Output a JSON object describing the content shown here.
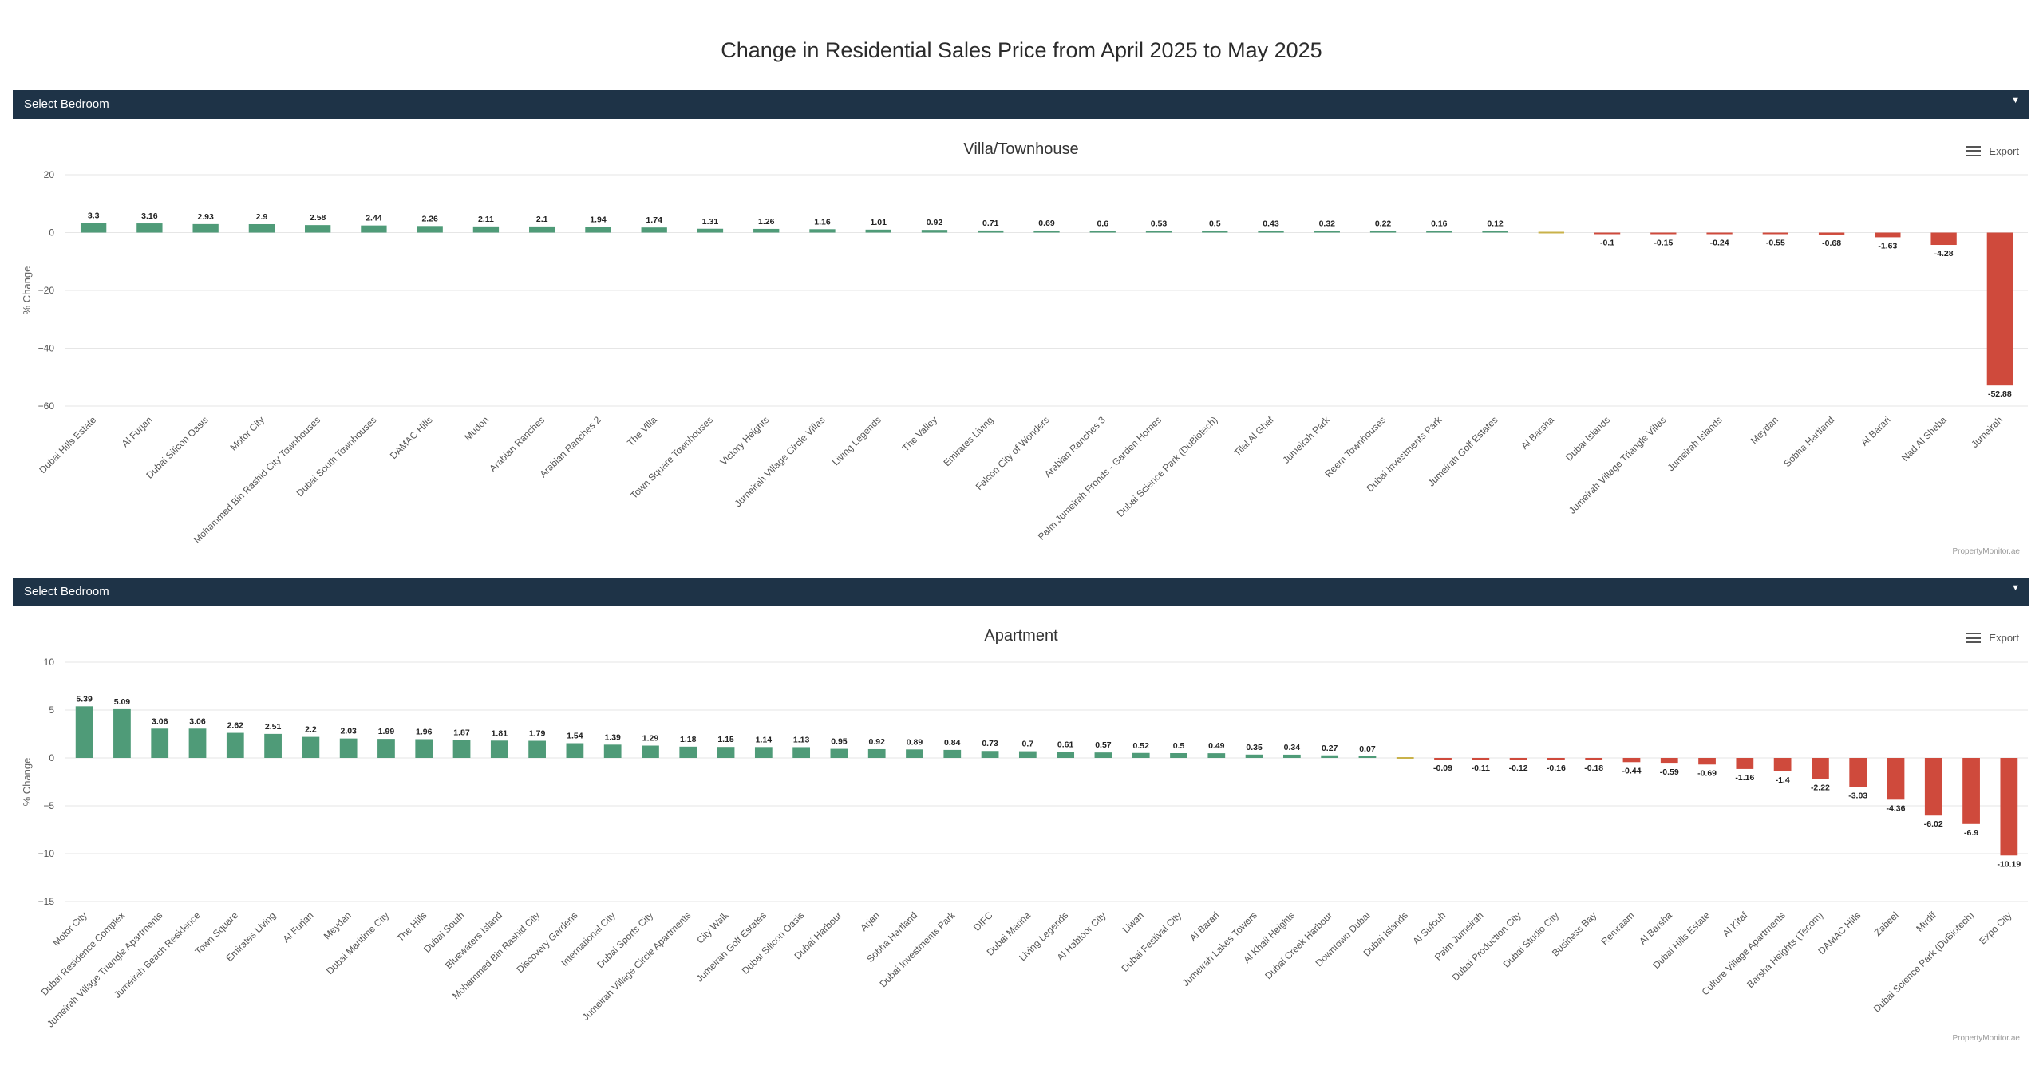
{
  "page": {
    "title": "Change in Residential Sales Price from April 2025 to May 2025"
  },
  "filters": [
    {
      "label": "Select Bedroom"
    },
    {
      "label": "Select Bedroom"
    }
  ],
  "export_label": "Export",
  "credit": "PropertyMonitor.ae",
  "colors": {
    "positive": "#4f9b78",
    "negative": "#cf4a3c",
    "zero": "#c9b24a",
    "filter_bar": "#1e3347",
    "grid": "#e6e6e6"
  },
  "chart_data": [
    {
      "type": "bar",
      "title": "Villa/Townhouse",
      "ylabel": "% Change",
      "ylim": [
        -60,
        20
      ],
      "yticks": [
        20,
        0,
        -20,
        -40,
        -60
      ],
      "ytick_labels": [
        "20",
        "0",
        "−20",
        "−40",
        "−60"
      ],
      "grid": true,
      "categories": [
        "Dubai Hills Estate",
        "Al Furjan",
        "Dubai Silicon Oasis",
        "Motor City",
        "Mohammed Bin Rashid City Townhouses",
        "Dubai South Townhouses",
        "DAMAC Hills",
        "Mudon",
        "Arabian Ranches",
        "Arabian Ranches 2",
        "The Villa",
        "Town Square Townhouses",
        "Victory Heights",
        "Jumeirah Village Circle Villas",
        "Living Legends",
        "The Valley",
        "Emirates Living",
        "Falcon City of Wonders",
        "Arabian Ranches 3",
        "Palm Jumeirah Fronds - Garden Homes",
        "Dubai Science Park (DuBiotech)",
        "Tilal Al Ghaf",
        "Jumeirah Park",
        "Reem Townhouses",
        "Dubai Investments Park",
        "Jumeirah Golf Estates",
        "Al Barsha",
        "Dubai Islands",
        "Jumeirah Village Triangle Villas",
        "Jumeirah Islands",
        "Meydan",
        "Sobha Hartland",
        "Al Barari",
        "Nad Al Sheba",
        "Jumeirah"
      ],
      "values": [
        3.3,
        3.16,
        2.93,
        2.9,
        2.58,
        2.44,
        2.26,
        2.11,
        2.1,
        1.94,
        1.74,
        1.31,
        1.26,
        1.16,
        1.01,
        0.92,
        0.71,
        0.69,
        0.6,
        0.53,
        0.5,
        0.43,
        0.32,
        0.22,
        0.16,
        0.12,
        0,
        -0.1,
        -0.15,
        -0.24,
        -0.55,
        -0.68,
        -1.63,
        -4.28,
        -52.88
      ],
      "data_labels": [
        "3.3",
        "3.16",
        "2.93",
        "2.9",
        "2.58",
        "2.44",
        "2.26",
        "2.11",
        "2.1",
        "1.94",
        "1.74",
        "1.31",
        "1.26",
        "1.16",
        "1.01",
        "0.92",
        "0.71",
        "0.69",
        "0.6",
        "0.53",
        "0.5",
        "0.43",
        "0.32",
        "0.22",
        "0.16",
        "0.12",
        "",
        "-0.1",
        "-0.15",
        "-0.24",
        "-0.55",
        "-0.68",
        "-1.63",
        "-4.28",
        "-52.88"
      ]
    },
    {
      "type": "bar",
      "title": "Apartment",
      "ylabel": "% Change",
      "ylim": [
        -15,
        10
      ],
      "yticks": [
        10,
        5,
        0,
        -5,
        -10,
        -15
      ],
      "ytick_labels": [
        "10",
        "5",
        "0",
        "−5",
        "−10",
        "−15"
      ],
      "grid": true,
      "categories": [
        "Motor City",
        "Dubai Residence Complex",
        "Jumeirah Village Triangle Apartments",
        "Jumeirah Beach Residence",
        "Town Square",
        "Emirates Living",
        "Al Furjan",
        "Meydan",
        "Dubai Maritime City",
        "The Hills",
        "Dubai South",
        "Bluewaters Island",
        "Mohammed Bin Rashid City",
        "Discovery Gardens",
        "International City",
        "Dubai Sports City",
        "Jumeirah Village Circle Apartments",
        "City Walk",
        "Jumeirah Golf Estates",
        "Dubai Silicon Oasis",
        "Dubai Harbour",
        "Arjan",
        "Sobha Hartland",
        "Dubai Investments Park",
        "DIFC",
        "Dubai Marina",
        "Living Legends",
        "Al Habtoor City",
        "Liwan",
        "Dubai Festival City",
        "Al Barari",
        "Jumeirah Lakes Towers",
        "Al Khail Heights",
        "Dubai Creek Harbour",
        "Downtown Dubai",
        "Dubai Islands",
        "Al Sufouh",
        "Palm Jumeirah",
        "Dubai Production City",
        "Dubai Studio City",
        "Business Bay",
        "Remraam",
        "Al Barsha",
        "Dubai Hills Estate",
        "Al Kifaf",
        "Culture Village Apartments",
        "Barsha Heights (Tecom)",
        "DAMAC Hills",
        "Zabeel",
        "Mirdif",
        "Dubai Science Park (DuBiotech)",
        "Expo City"
      ],
      "values": [
        5.39,
        5.09,
        3.06,
        3.06,
        2.62,
        2.51,
        2.2,
        2.03,
        1.99,
        1.96,
        1.87,
        1.81,
        1.79,
        1.54,
        1.39,
        1.29,
        1.18,
        1.15,
        1.14,
        1.13,
        0.95,
        0.92,
        0.89,
        0.84,
        0.73,
        0.7,
        0.61,
        0.57,
        0.52,
        0.5,
        0.49,
        0.35,
        0.34,
        0.27,
        0.07,
        0,
        -0.09,
        -0.11,
        -0.12,
        -0.16,
        -0.18,
        -0.44,
        -0.59,
        -0.69,
        -1.16,
        -1.4,
        -2.22,
        -3.03,
        -4.36,
        -6.02,
        -6.9,
        -10.19
      ],
      "data_labels": [
        "5.39",
        "5.09",
        "3.06",
        "3.06",
        "2.62",
        "2.51",
        "2.2",
        "2.03",
        "1.99",
        "1.96",
        "1.87",
        "1.81",
        "1.79",
        "1.54",
        "1.39",
        "1.29",
        "1.18",
        "1.15",
        "1.14",
        "1.13",
        "0.95",
        "0.92",
        "0.89",
        "0.84",
        "0.73",
        "0.7",
        "0.61",
        "0.57",
        "0.52",
        "0.5",
        "0.49",
        "0.35",
        "0.34",
        "0.27",
        "0.07",
        "",
        "-0.09",
        "-0.11",
        "-0.12",
        "-0.16",
        "-0.18",
        "-0.44",
        "-0.59",
        "-0.69",
        "-1.16",
        "-1.4",
        "-2.22",
        "-3.03",
        "-4.36",
        "-6.02",
        "-6.9",
        "-10.19"
      ]
    }
  ]
}
